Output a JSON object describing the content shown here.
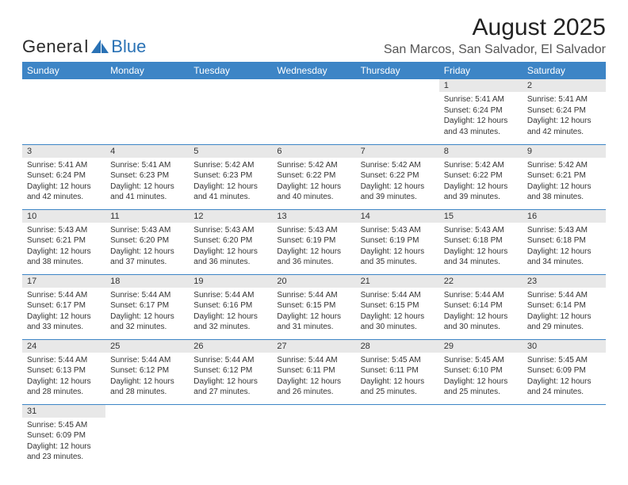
{
  "logo": {
    "text_genera": "Genera",
    "text_l": "l",
    "text_blue": "Blue"
  },
  "title": "August 2025",
  "location": "San Marcos, San Salvador, El Salvador",
  "colors": {
    "header_bg": "#3d85c6",
    "header_text": "#ffffff",
    "daynum_bg": "#e8e8e8",
    "border": "#3d85c6",
    "text": "#333333",
    "page_bg": "#ffffff"
  },
  "weekdays": [
    "Sunday",
    "Monday",
    "Tuesday",
    "Wednesday",
    "Thursday",
    "Friday",
    "Saturday"
  ],
  "weeks": [
    [
      null,
      null,
      null,
      null,
      null,
      {
        "n": "1",
        "sr": "Sunrise: 5:41 AM",
        "ss": "Sunset: 6:24 PM",
        "dl": "Daylight: 12 hours and 43 minutes."
      },
      {
        "n": "2",
        "sr": "Sunrise: 5:41 AM",
        "ss": "Sunset: 6:24 PM",
        "dl": "Daylight: 12 hours and 42 minutes."
      }
    ],
    [
      {
        "n": "3",
        "sr": "Sunrise: 5:41 AM",
        "ss": "Sunset: 6:24 PM",
        "dl": "Daylight: 12 hours and 42 minutes."
      },
      {
        "n": "4",
        "sr": "Sunrise: 5:41 AM",
        "ss": "Sunset: 6:23 PM",
        "dl": "Daylight: 12 hours and 41 minutes."
      },
      {
        "n": "5",
        "sr": "Sunrise: 5:42 AM",
        "ss": "Sunset: 6:23 PM",
        "dl": "Daylight: 12 hours and 41 minutes."
      },
      {
        "n": "6",
        "sr": "Sunrise: 5:42 AM",
        "ss": "Sunset: 6:22 PM",
        "dl": "Daylight: 12 hours and 40 minutes."
      },
      {
        "n": "7",
        "sr": "Sunrise: 5:42 AM",
        "ss": "Sunset: 6:22 PM",
        "dl": "Daylight: 12 hours and 39 minutes."
      },
      {
        "n": "8",
        "sr": "Sunrise: 5:42 AM",
        "ss": "Sunset: 6:22 PM",
        "dl": "Daylight: 12 hours and 39 minutes."
      },
      {
        "n": "9",
        "sr": "Sunrise: 5:42 AM",
        "ss": "Sunset: 6:21 PM",
        "dl": "Daylight: 12 hours and 38 minutes."
      }
    ],
    [
      {
        "n": "10",
        "sr": "Sunrise: 5:43 AM",
        "ss": "Sunset: 6:21 PM",
        "dl": "Daylight: 12 hours and 38 minutes."
      },
      {
        "n": "11",
        "sr": "Sunrise: 5:43 AM",
        "ss": "Sunset: 6:20 PM",
        "dl": "Daylight: 12 hours and 37 minutes."
      },
      {
        "n": "12",
        "sr": "Sunrise: 5:43 AM",
        "ss": "Sunset: 6:20 PM",
        "dl": "Daylight: 12 hours and 36 minutes."
      },
      {
        "n": "13",
        "sr": "Sunrise: 5:43 AM",
        "ss": "Sunset: 6:19 PM",
        "dl": "Daylight: 12 hours and 36 minutes."
      },
      {
        "n": "14",
        "sr": "Sunrise: 5:43 AM",
        "ss": "Sunset: 6:19 PM",
        "dl": "Daylight: 12 hours and 35 minutes."
      },
      {
        "n": "15",
        "sr": "Sunrise: 5:43 AM",
        "ss": "Sunset: 6:18 PM",
        "dl": "Daylight: 12 hours and 34 minutes."
      },
      {
        "n": "16",
        "sr": "Sunrise: 5:43 AM",
        "ss": "Sunset: 6:18 PM",
        "dl": "Daylight: 12 hours and 34 minutes."
      }
    ],
    [
      {
        "n": "17",
        "sr": "Sunrise: 5:44 AM",
        "ss": "Sunset: 6:17 PM",
        "dl": "Daylight: 12 hours and 33 minutes."
      },
      {
        "n": "18",
        "sr": "Sunrise: 5:44 AM",
        "ss": "Sunset: 6:17 PM",
        "dl": "Daylight: 12 hours and 32 minutes."
      },
      {
        "n": "19",
        "sr": "Sunrise: 5:44 AM",
        "ss": "Sunset: 6:16 PM",
        "dl": "Daylight: 12 hours and 32 minutes."
      },
      {
        "n": "20",
        "sr": "Sunrise: 5:44 AM",
        "ss": "Sunset: 6:15 PM",
        "dl": "Daylight: 12 hours and 31 minutes."
      },
      {
        "n": "21",
        "sr": "Sunrise: 5:44 AM",
        "ss": "Sunset: 6:15 PM",
        "dl": "Daylight: 12 hours and 30 minutes."
      },
      {
        "n": "22",
        "sr": "Sunrise: 5:44 AM",
        "ss": "Sunset: 6:14 PM",
        "dl": "Daylight: 12 hours and 30 minutes."
      },
      {
        "n": "23",
        "sr": "Sunrise: 5:44 AM",
        "ss": "Sunset: 6:14 PM",
        "dl": "Daylight: 12 hours and 29 minutes."
      }
    ],
    [
      {
        "n": "24",
        "sr": "Sunrise: 5:44 AM",
        "ss": "Sunset: 6:13 PM",
        "dl": "Daylight: 12 hours and 28 minutes."
      },
      {
        "n": "25",
        "sr": "Sunrise: 5:44 AM",
        "ss": "Sunset: 6:12 PM",
        "dl": "Daylight: 12 hours and 28 minutes."
      },
      {
        "n": "26",
        "sr": "Sunrise: 5:44 AM",
        "ss": "Sunset: 6:12 PM",
        "dl": "Daylight: 12 hours and 27 minutes."
      },
      {
        "n": "27",
        "sr": "Sunrise: 5:44 AM",
        "ss": "Sunset: 6:11 PM",
        "dl": "Daylight: 12 hours and 26 minutes."
      },
      {
        "n": "28",
        "sr": "Sunrise: 5:45 AM",
        "ss": "Sunset: 6:11 PM",
        "dl": "Daylight: 12 hours and 25 minutes."
      },
      {
        "n": "29",
        "sr": "Sunrise: 5:45 AM",
        "ss": "Sunset: 6:10 PM",
        "dl": "Daylight: 12 hours and 25 minutes."
      },
      {
        "n": "30",
        "sr": "Sunrise: 5:45 AM",
        "ss": "Sunset: 6:09 PM",
        "dl": "Daylight: 12 hours and 24 minutes."
      }
    ],
    [
      {
        "n": "31",
        "sr": "Sunrise: 5:45 AM",
        "ss": "Sunset: 6:09 PM",
        "dl": "Daylight: 12 hours and 23 minutes."
      },
      null,
      null,
      null,
      null,
      null,
      null
    ]
  ]
}
